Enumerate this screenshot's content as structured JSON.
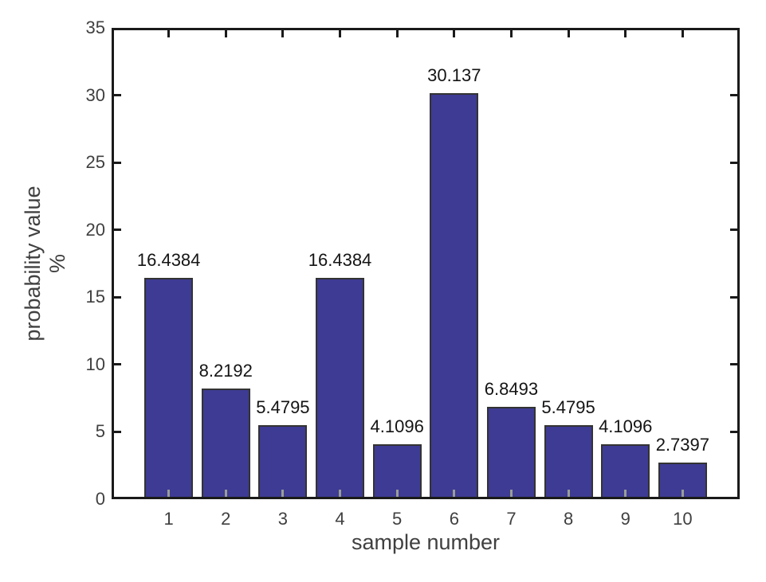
{
  "chart_data": {
    "type": "bar",
    "title": "",
    "xlabel": "sample number",
    "ylabel_lines": [
      "probability value",
      "%"
    ],
    "categories": [
      "1",
      "2",
      "3",
      "4",
      "5",
      "6",
      "7",
      "8",
      "9",
      "10"
    ],
    "values": [
      16.4384,
      8.2192,
      5.4795,
      16.4384,
      4.1096,
      30.137,
      6.8493,
      5.4795,
      4.1096,
      2.7397
    ],
    "bar_labels": [
      "16.4384",
      "8.2192",
      "5.4795",
      "16.4384",
      "4.1096",
      "30.137",
      "6.8493",
      "5.4795",
      "4.1096",
      "2.7397"
    ],
    "ylim": [
      0,
      35
    ],
    "yticks": [
      0,
      5,
      10,
      15,
      20,
      25,
      30,
      35
    ],
    "xlim_units": [
      0,
      11
    ],
    "grid": false,
    "legend": null,
    "colors": {
      "bar_fill": "#3e3b94",
      "bar_edge": "#333333",
      "axis_line": "#1a1a1a",
      "tick_label": "#404040",
      "axis_label": "#404040",
      "value_label": "#141414",
      "inner_tick_over_bar": "#9a9e96",
      "background": "#ffffff"
    }
  }
}
